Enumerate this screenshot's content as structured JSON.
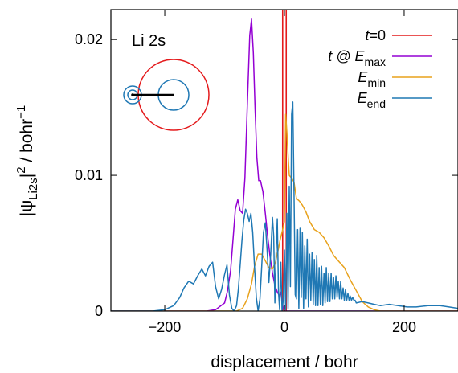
{
  "chart_data": {
    "type": "line",
    "annotation": "Li 2s",
    "xlabel": "displacement / bohr",
    "ylabel_parts": {
      "base": "|ψ",
      "sub": "Li2s",
      "mid": "|",
      "sup1": "2",
      "unit": " / bohr",
      "sup2": "−1"
    },
    "xlim": [
      -290,
      290
    ],
    "ylim": [
      0,
      0.0222
    ],
    "xticks": [
      -200,
      0,
      200
    ],
    "xtick_labels": [
      "−200",
      "0",
      "200"
    ],
    "yticks": [
      0,
      0.01,
      0.02
    ],
    "ytick_labels": [
      "0",
      "0.01",
      "0.02"
    ],
    "grid": false,
    "legend_position": "top-right",
    "series": [
      {
        "key": "t0",
        "legend": {
          "base": "t",
          "sub": "",
          "suffix": "=0"
        },
        "color": "#e41a1c",
        "style": "spike",
        "x": [
          -3,
          3
        ],
        "y": [
          0.0222,
          0.0222
        ]
      },
      {
        "key": "tEmax",
        "legend": {
          "base": "t @ E",
          "sub": "max",
          "suffix": ""
        },
        "color": "#9400d3",
        "x": [
          -290,
          -130,
          -115,
          -100,
          -95,
          -90,
          -86,
          -82,
          -78,
          -74,
          -70,
          -66,
          -62,
          -58,
          -55,
          -52,
          -49,
          -46,
          -43,
          -40,
          -36,
          -32,
          -28,
          -24,
          -20,
          -16,
          -12,
          -8,
          -6,
          -4,
          -2,
          0,
          290
        ],
        "y": [
          0,
          0,
          0.0001,
          0.0006,
          0.0015,
          0.003,
          0.0052,
          0.0075,
          0.0082,
          0.0074,
          0.0072,
          0.0098,
          0.0152,
          0.0203,
          0.0215,
          0.019,
          0.0148,
          0.0113,
          0.0096,
          0.0096,
          0.0088,
          0.0072,
          0.0055,
          0.004,
          0.0028,
          0.0019,
          0.0014,
          0.0011,
          0.0014,
          0.0008,
          0.0002,
          0,
          0
        ]
      },
      {
        "key": "Emin",
        "legend": {
          "base": "E",
          "sub": "min",
          "suffix": ""
        },
        "color": "#e8a21c",
        "x": [
          -290,
          -100,
          -80,
          -70,
          -62,
          -55,
          -50,
          -44,
          -38,
          -32,
          -26,
          -20,
          -15,
          -10,
          -7,
          -4,
          -2,
          0,
          2,
          4,
          6,
          8,
          12,
          16,
          20,
          25,
          30,
          36,
          42,
          50,
          58,
          66,
          74,
          82,
          90,
          100,
          110,
          120,
          130,
          140,
          150,
          160,
          290
        ],
        "y": [
          0,
          0,
          0,
          0.0002,
          0.0009,
          0.002,
          0.0033,
          0.0042,
          0.0042,
          0.0037,
          0.0032,
          0.0031,
          0.0036,
          0.0046,
          0.0053,
          0.0058,
          0.0062,
          0.0066,
          0.0145,
          0.0132,
          0.0115,
          0.01,
          0.0098,
          0.0095,
          0.0083,
          0.0081,
          0.0078,
          0.0073,
          0.0066,
          0.006,
          0.0058,
          0.0054,
          0.0048,
          0.0041,
          0.0037,
          0.0032,
          0.0023,
          0.0015,
          0.0007,
          0.0003,
          0.0001,
          0,
          0
        ]
      },
      {
        "key": "Eend",
        "legend": {
          "base": "E",
          "sub": "end",
          "suffix": ""
        },
        "color": "#1f78b4",
        "x": [
          -290,
          -220,
          -200,
          -185,
          -175,
          -168,
          -160,
          -152,
          -145,
          -138,
          -132,
          -126,
          -120,
          -115,
          -110,
          -105,
          -100,
          -96,
          -92,
          -88,
          -84,
          -80,
          -77,
          -74,
          -71,
          -68,
          -65,
          -62,
          -59,
          -56,
          -53,
          -50,
          -47,
          -44,
          -41,
          -38,
          -35,
          -32,
          -29,
          -26,
          -23,
          -20,
          -18,
          -16,
          -14,
          -12,
          -10,
          -8,
          -6,
          -4,
          -2,
          0,
          2,
          4,
          6,
          8,
          10,
          12,
          14,
          16,
          18,
          20,
          22,
          24,
          26,
          28,
          30,
          32,
          34,
          36,
          38,
          40,
          42,
          44,
          46,
          48,
          50,
          52,
          54,
          56,
          58,
          60,
          62,
          64,
          66,
          68,
          70,
          72,
          74,
          76,
          78,
          80,
          82,
          84,
          86,
          88,
          90,
          92,
          94,
          96,
          98,
          100,
          102,
          104,
          106,
          108,
          110,
          112,
          114,
          116,
          118,
          120,
          130,
          140,
          150,
          160,
          175,
          190,
          205,
          220,
          240,
          260,
          275,
          290
        ],
        "y": [
          0,
          0,
          0.0001,
          0.0004,
          0.001,
          0.0017,
          0.0022,
          0.002,
          0.0026,
          0.0031,
          0.0026,
          0.0033,
          0.0036,
          0.0018,
          0.0009,
          0.0016,
          0.0027,
          0.0034,
          0.0012,
          0.0002,
          0,
          0.0004,
          0.0016,
          0.0034,
          0.0052,
          0.0067,
          0.0075,
          0.0072,
          0.0066,
          0.0072,
          0.0058,
          0.0032,
          0.001,
          0,
          0.0009,
          0.0033,
          0.0058,
          0.0065,
          0.0045,
          0.0021,
          0.0042,
          0.0069,
          0.0055,
          0.0006,
          0.0042,
          0.0068,
          0.0014,
          0.0001,
          0.0036,
          0,
          0.0008,
          0.0045,
          0.0001,
          0.0072,
          0.0002,
          0.0092,
          0.0018,
          0.0145,
          0.0154,
          0.0088,
          0.0012,
          0.0009,
          0.006,
          0.0002,
          0.0061,
          0.001,
          0.0058,
          0.0002,
          0.0048,
          0.0009,
          0.0053,
          0.0003,
          0.0042,
          0.0008,
          0.0043,
          0.0005,
          0.0038,
          0.0004,
          0.0041,
          0.0004,
          0.0032,
          0.0005,
          0.0033,
          0.0004,
          0.0028,
          0.0006,
          0.0032,
          0.0007,
          0.0028,
          0.0007,
          0.0028,
          0.0009,
          0.0025,
          0.0009,
          0.0026,
          0.001,
          0.0022,
          0.0009,
          0.0022,
          0.0009,
          0.0017,
          0.0008,
          0.0016,
          0.0008,
          0.0013,
          0.0008,
          0.0011,
          0.0008,
          0.001,
          0.0008,
          0.0008,
          0.0006,
          0.0007,
          0.0006,
          0.0005,
          0.0004,
          0.0005,
          0.0004,
          0.0003,
          0.0003,
          0.0004,
          0.0004,
          0.0003,
          0.0002
        ]
      }
    ]
  },
  "inset": {
    "description_icon": "atom-orbit-diagram-icon",
    "colors": {
      "large_circle": "#e41a1c",
      "orbit": "#1f78b4",
      "bond": "#000000"
    }
  }
}
